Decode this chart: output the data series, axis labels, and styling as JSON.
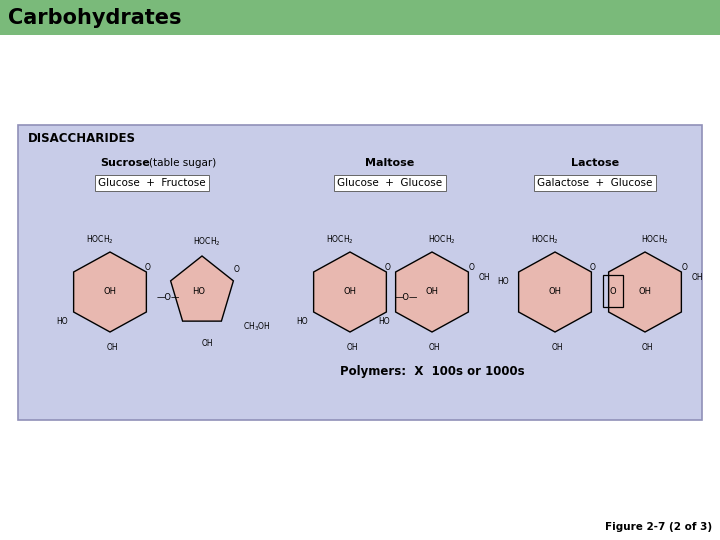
{
  "title": "Carbohydrates",
  "title_bg_color": "#7aba7a",
  "title_text_color": "#000000",
  "title_fontsize": 15,
  "title_font_weight": "bold",
  "bg_color": "#ffffff",
  "panel_bg_color": "#c8cce8",
  "panel_border_color": "#9090b8",
  "panel_label": "DISACCHARIDES",
  "panel_label_fontsize": 8.5,
  "panel_label_font_weight": "bold",
  "polymer_text": "Polymers:  X  100s or 1000s",
  "figure_label": "Figure 2-7 (2 of 3)",
  "ring_fill_color": "#e8b8b0",
  "ring_edge_color": "#000000"
}
